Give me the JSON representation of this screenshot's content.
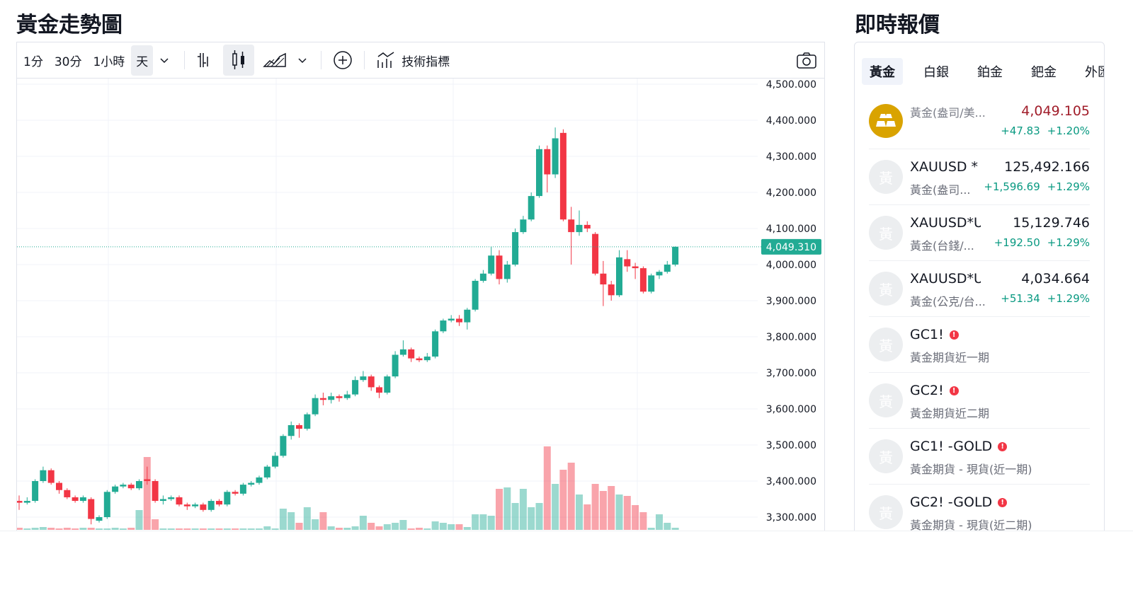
{
  "header": {
    "title": "黃金走勢圖",
    "quotes_title": "即時報價"
  },
  "toolbar": {
    "intervals": [
      "1分",
      "30分",
      "1小時",
      "天"
    ],
    "indicators": "技術指標"
  },
  "chart_data": {
    "type": "candlestick",
    "open": [
      3345,
      3340,
      3345,
      3400,
      3430,
      3395,
      3375,
      3355,
      3345,
      3350,
      3290,
      3300,
      3370,
      3385,
      3390,
      3380,
      3405,
      3400,
      3345,
      3350,
      3355,
      3335,
      3330,
      3335,
      3320,
      3345,
      3335,
      3370,
      3365,
      3390,
      3395,
      3410,
      3440,
      3470,
      3525,
      3555,
      3545,
      3585,
      3630,
      3625,
      3635,
      3630,
      3640,
      3680,
      3690,
      3660,
      3645,
      3690,
      3750,
      3765,
      3740,
      3735,
      3745,
      3815,
      3845,
      3850,
      3840,
      3875,
      3955,
      3975,
      4025,
      3960,
      4000,
      4090,
      4125,
      4190,
      4320,
      4250,
      4365,
      4125,
      4090,
      4110,
      4085,
      3975,
      3945,
      3915,
      4015,
      3995,
      3990,
      3925,
      3970,
      3980,
      4000
    ],
    "high": [
      3360,
      3355,
      3405,
      3440,
      3435,
      3400,
      3380,
      3360,
      3360,
      3355,
      3305,
      3375,
      3390,
      3395,
      3395,
      3405,
      3440,
      3405,
      3360,
      3360,
      3360,
      3340,
      3340,
      3340,
      3350,
      3350,
      3375,
      3375,
      3395,
      3400,
      3415,
      3445,
      3480,
      3530,
      3565,
      3560,
      3590,
      3640,
      3645,
      3645,
      3640,
      3650,
      3690,
      3705,
      3695,
      3665,
      3695,
      3760,
      3790,
      3770,
      3745,
      3755,
      3820,
      3850,
      3860,
      3860,
      3880,
      3960,
      3985,
      4050,
      4040,
      4010,
      4100,
      4135,
      4200,
      4330,
      4330,
      4380,
      4375,
      4160,
      4150,
      4120,
      4090,
      4010,
      3955,
      4040,
      4040,
      4005,
      3995,
      3975,
      3985,
      4010,
      4050
    ],
    "low": [
      3320,
      3335,
      3340,
      3395,
      3390,
      3365,
      3350,
      3340,
      3340,
      3280,
      3285,
      3295,
      3365,
      3380,
      3375,
      3375,
      3390,
      3340,
      3335,
      3345,
      3330,
      3320,
      3325,
      3315,
      3315,
      3330,
      3330,
      3360,
      3360,
      3385,
      3390,
      3405,
      3435,
      3465,
      3515,
      3520,
      3540,
      3580,
      3610,
      3615,
      3620,
      3625,
      3635,
      3675,
      3650,
      3630,
      3640,
      3685,
      3745,
      3730,
      3730,
      3730,
      3740,
      3810,
      3840,
      3830,
      3820,
      3870,
      3950,
      3970,
      3945,
      3950,
      3995,
      4085,
      4120,
      4185,
      4200,
      4240,
      4120,
      4000,
      4080,
      4090,
      3970,
      3885,
      3900,
      3910,
      3980,
      3960,
      3920,
      3920,
      3960,
      3975,
      3995
    ],
    "close": [
      3340,
      3345,
      3400,
      3430,
      3395,
      3375,
      3355,
      3345,
      3355,
      3295,
      3300,
      3370,
      3385,
      3390,
      3380,
      3400,
      3400,
      3345,
      3350,
      3355,
      3335,
      3330,
      3335,
      3320,
      3345,
      3335,
      3370,
      3365,
      3390,
      3395,
      3410,
      3440,
      3470,
      3525,
      3555,
      3545,
      3585,
      3630,
      3625,
      3635,
      3630,
      3640,
      3680,
      3690,
      3660,
      3645,
      3690,
      3750,
      3765,
      3740,
      3735,
      3745,
      3815,
      3845,
      3850,
      3840,
      3875,
      3955,
      3975,
      4025,
      3960,
      4000,
      4090,
      4125,
      4190,
      4320,
      4250,
      4350,
      4125,
      4090,
      4110,
      4100,
      3975,
      3945,
      3915,
      4020,
      3995,
      3990,
      3925,
      3970,
      3980,
      4000,
      4049.31
    ],
    "volume": [
      3,
      2,
      3,
      4,
      3,
      2,
      3,
      2,
      3,
      3,
      2,
      2,
      3,
      2,
      3,
      28,
      103,
      15,
      2,
      2,
      2,
      2,
      2,
      2,
      2,
      2,
      2,
      2,
      2,
      2,
      2,
      5,
      2,
      30,
      25,
      10,
      32,
      15,
      25,
      5,
      3,
      3,
      5,
      20,
      10,
      5,
      8,
      10,
      14,
      2,
      3,
      2,
      12,
      10,
      8,
      8,
      4,
      22,
      22,
      20,
      58,
      60,
      38,
      58,
      32,
      38,
      118,
      65,
      85,
      95,
      50,
      36,
      65,
      55,
      62,
      50,
      48,
      35,
      25,
      3,
      22,
      10,
      3
    ],
    "up_color": "#22ab94",
    "down_color": "#f23645",
    "ylim": [
      3265,
      4518
    ],
    "yticks": [
      {
        "value": 3300,
        "label": "3,300.000"
      },
      {
        "value": 3400,
        "label": "3,400.000"
      },
      {
        "value": 3500,
        "label": "3,500.000"
      },
      {
        "value": 3600,
        "label": "3,600.000"
      },
      {
        "value": 3700,
        "label": "3,700.000"
      },
      {
        "value": 3800,
        "label": "3,800.000"
      },
      {
        "value": 3900,
        "label": "3,900.000"
      },
      {
        "value": 4000,
        "label": "4,000.000"
      },
      {
        "value": 4100,
        "label": "4,100.000"
      },
      {
        "value": 4200,
        "label": "4,200.000"
      },
      {
        "value": 4300,
        "label": "4,300.000"
      },
      {
        "value": 4400,
        "label": "4,400.000"
      },
      {
        "value": 4500,
        "label": "4,500.000"
      }
    ],
    "last_price": {
      "value": 4049.31,
      "label": "4,049.310"
    },
    "grid": true
  },
  "quotes": {
    "tabs": [
      "黃金",
      "白銀",
      "鉑金",
      "鈀金",
      "外匯"
    ],
    "items": [
      {
        "icon": null,
        "name": "黃金(盎司/美...",
        "price": "4,049.105",
        "change": "+47.83",
        "pct": "+1.20%"
      },
      {
        "icon": "黃",
        "name": "XAUUSD *",
        "sub": "黃金(盎司...",
        "price": "125,492.166",
        "change": "+1,596.69",
        "pct": "+1.29%"
      },
      {
        "icon": "黃",
        "name": "XAUUSD*US",
        "sub": "黃金(台錢/...",
        "price": "15,129.746",
        "change": "+192.50",
        "pct": "+1.29%"
      },
      {
        "icon": "黃",
        "name": "XAUUSD*USI",
        "sub": "黃金(公克/台...",
        "price": "4,034.664",
        "change": "+51.34",
        "pct": "+1.29%"
      },
      {
        "icon": "黃",
        "name": "GC1!",
        "sub": "黃金期貨近一期"
      },
      {
        "icon": "黃",
        "name": "GC2!",
        "sub": "黃金期貨近二期"
      },
      {
        "icon": "黃",
        "name": "GC1! -GOLD",
        "sub": "黃金期貨 - 現貨(近一期)"
      },
      {
        "icon": "黃",
        "name": "GC2! -GOLD",
        "sub": "黃金期貨 - 現貨(近二期)"
      }
    ]
  }
}
